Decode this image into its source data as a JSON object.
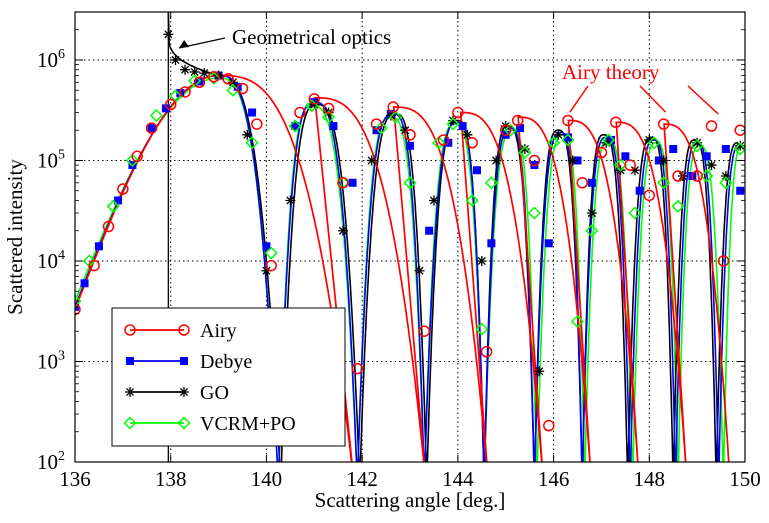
{
  "chart_data": {
    "type": "line",
    "xlabel": "Scattering angle [deg.]",
    "ylabel": "Scattered intensity",
    "xlim": [
      136,
      150
    ],
    "ylim": [
      100,
      3000000
    ],
    "y_scale": "log",
    "grid": true,
    "legend_position": "bottom-left",
    "x_ticks": [
      "136",
      "138",
      "140",
      "142",
      "144",
      "146",
      "148",
      "150"
    ],
    "y_ticks": [
      {
        "value": 100,
        "base": "10",
        "exp": "2"
      },
      {
        "value": 1000,
        "base": "10",
        "exp": "3"
      },
      {
        "value": 10000,
        "base": "10",
        "exp": "4"
      },
      {
        "value": 100000,
        "base": "10",
        "exp": "5"
      },
      {
        "value": 1000000,
        "base": "10",
        "exp": "6"
      }
    ],
    "annotations": [
      {
        "text": "Geometrical optics",
        "color": "#000000",
        "target_x": 138.05,
        "target_y": 1200000
      },
      {
        "text": "Airy theory",
        "color": "#ff0000",
        "targets": [
          [
            146.3,
            230000
          ],
          [
            148.3,
            230000
          ],
          [
            149.4,
            220000
          ]
        ]
      }
    ],
    "series": [
      {
        "name": "Airy",
        "color": "#ff0000",
        "marker": "circle",
        "curve": {
          "peaks_x": [
            139.0,
            141.0,
            142.65,
            144.05,
            145.25,
            146.3,
            147.3,
            148.3,
            149.3
          ],
          "peaks_y": [
            700000,
            420000,
            340000,
            300000,
            270000,
            250000,
            240000,
            230000,
            225000
          ],
          "minima_x": [
            141.85,
            143.35,
            144.65,
            145.8,
            146.8,
            147.8,
            148.8,
            149.7
          ]
        },
        "markers": [
          [
            136.0,
            3300
          ],
          [
            136.4,
            9000
          ],
          [
            136.7,
            22000
          ],
          [
            137.0,
            52000
          ],
          [
            137.3,
            110000
          ],
          [
            137.6,
            210000
          ],
          [
            138.0,
            360000
          ],
          [
            138.3,
            480000
          ],
          [
            138.6,
            600000
          ],
          [
            138.9,
            680000
          ],
          [
            139.2,
            650000
          ],
          [
            139.5,
            520000
          ],
          [
            139.8,
            230000
          ],
          [
            140.1,
            9000
          ],
          [
            140.7,
            300000
          ],
          [
            141.0,
            410000
          ],
          [
            141.3,
            330000
          ],
          [
            141.6,
            60000
          ],
          [
            141.9,
            850
          ],
          [
            142.3,
            230000
          ],
          [
            142.65,
            340000
          ],
          [
            143.0,
            180000
          ],
          [
            143.3,
            2000
          ],
          [
            143.7,
            160000
          ],
          [
            144.0,
            300000
          ],
          [
            144.3,
            150000
          ],
          [
            144.6,
            1250
          ],
          [
            145.0,
            200000
          ],
          [
            145.25,
            250000
          ],
          [
            145.6,
            100000
          ],
          [
            145.9,
            230
          ],
          [
            146.3,
            250000
          ],
          [
            146.6,
            60000
          ],
          [
            147.0,
            120000
          ],
          [
            147.3,
            240000
          ],
          [
            147.6,
            90000
          ],
          [
            148.0,
            45000
          ],
          [
            148.3,
            230000
          ],
          [
            148.6,
            70000
          ],
          [
            149.0,
            70000
          ],
          [
            149.3,
            220000
          ],
          [
            149.55,
            10000
          ],
          [
            149.9,
            200000
          ]
        ]
      },
      {
        "name": "Debye",
        "color": "#0000ff",
        "marker": "square",
        "markers": [
          [
            136.0,
            3500
          ],
          [
            136.2,
            6000
          ],
          [
            136.5,
            14000
          ],
          [
            136.9,
            40000
          ],
          [
            137.2,
            90000
          ],
          [
            137.6,
            210000
          ],
          [
            137.9,
            330000
          ],
          [
            138.2,
            470000
          ],
          [
            138.6,
            610000
          ],
          [
            139.0,
            700000
          ],
          [
            139.4,
            540000
          ],
          [
            139.7,
            300000
          ],
          [
            140.0,
            14000
          ],
          [
            140.6,
            220000
          ],
          [
            141.0,
            380000
          ],
          [
            141.4,
            220000
          ],
          [
            141.8,
            60000
          ],
          [
            142.3,
            200000
          ],
          [
            142.6,
            290000
          ],
          [
            143.0,
            140000
          ],
          [
            143.4,
            20000
          ],
          [
            143.8,
            150000
          ],
          [
            144.1,
            220000
          ],
          [
            144.4,
            80000
          ],
          [
            144.7,
            15000
          ],
          [
            145.0,
            180000
          ],
          [
            145.3,
            210000
          ],
          [
            145.6,
            90000
          ],
          [
            145.9,
            15000
          ],
          [
            146.3,
            170000
          ],
          [
            146.5,
            100000
          ],
          [
            146.8,
            60000
          ],
          [
            147.2,
            160000
          ],
          [
            147.5,
            110000
          ],
          [
            147.8,
            50000
          ],
          [
            148.2,
            100000
          ],
          [
            148.5,
            130000
          ],
          [
            148.9,
            70000
          ],
          [
            149.2,
            110000
          ],
          [
            149.6,
            130000
          ],
          [
            149.9,
            50000
          ]
        ]
      },
      {
        "name": "GO",
        "color": "#000000",
        "marker": "star",
        "curve": {
          "caustic_x": 137.95,
          "peaks_x": [
            139.0,
            141.05,
            142.7,
            144.0,
            145.05,
            146.1,
            147.05,
            148.05,
            148.95,
            149.85
          ],
          "peaks_y": [
            700000,
            360000,
            290000,
            250000,
            220000,
            200000,
            180000,
            170000,
            160000,
            150000
          ],
          "minima_x": [
            140.3,
            141.95,
            143.35,
            144.55,
            145.6,
            146.6,
            147.55,
            148.5,
            149.4
          ]
        },
        "markers": [
          [
            137.95,
            1800000
          ],
          [
            138.1,
            1000000
          ],
          [
            138.3,
            800000
          ],
          [
            138.5,
            760000
          ],
          [
            138.7,
            740000
          ],
          [
            139.0,
            700000
          ],
          [
            139.3,
            600000
          ],
          [
            139.6,
            180000
          ],
          [
            140.0,
            8000
          ],
          [
            140.5,
            40000
          ],
          [
            141.0,
            360000
          ],
          [
            141.3,
            300000
          ],
          [
            141.6,
            20000
          ],
          [
            142.2,
            100000
          ],
          [
            142.6,
            280000
          ],
          [
            142.9,
            200000
          ],
          [
            143.2,
            8000
          ],
          [
            143.5,
            40000
          ],
          [
            143.9,
            250000
          ],
          [
            144.2,
            180000
          ],
          [
            144.5,
            10000
          ],
          [
            144.8,
            100000
          ],
          [
            145.0,
            220000
          ],
          [
            145.4,
            130000
          ],
          [
            145.7,
            800
          ],
          [
            146.1,
            180000
          ],
          [
            146.4,
            100000
          ],
          [
            146.8,
            30000
          ],
          [
            147.1,
            150000
          ],
          [
            147.4,
            80000
          ],
          [
            147.7,
            80000
          ],
          [
            148.0,
            160000
          ],
          [
            148.3,
            100000
          ],
          [
            148.7,
            70000
          ],
          [
            149.0,
            150000
          ],
          [
            149.3,
            90000
          ],
          [
            149.6,
            70000
          ],
          [
            149.9,
            140000
          ]
        ]
      },
      {
        "name": "VCRM+PO",
        "color": "#00ff00",
        "marker": "diamond",
        "curve": {
          "peaks_x": [
            139.0,
            140.95,
            142.6,
            143.95,
            145.15,
            146.2,
            147.15,
            148.15,
            149.05,
            149.95
          ],
          "peaks_y": [
            660000,
            350000,
            270000,
            230000,
            200000,
            180000,
            160000,
            150000,
            140000,
            140000
          ],
          "minima_x": [
            140.25,
            141.9,
            143.3,
            144.55,
            145.65,
            146.65,
            147.65,
            148.6,
            149.55
          ]
        },
        "markers": [
          [
            136.0,
            4000
          ],
          [
            136.3,
            10000
          ],
          [
            136.8,
            35000
          ],
          [
            137.2,
            100000
          ],
          [
            137.7,
            280000
          ],
          [
            138.1,
            440000
          ],
          [
            138.5,
            620000
          ],
          [
            138.9,
            660000
          ],
          [
            139.3,
            500000
          ],
          [
            139.7,
            150000
          ],
          [
            140.1,
            12000
          ],
          [
            140.6,
            220000
          ],
          [
            140.95,
            350000
          ],
          [
            141.3,
            270000
          ],
          [
            141.6,
            60000
          ],
          [
            142.4,
            210000
          ],
          [
            142.7,
            270000
          ],
          [
            143.0,
            60000
          ],
          [
            143.6,
            150000
          ],
          [
            143.9,
            230000
          ],
          [
            144.3,
            40000
          ],
          [
            144.5,
            2100
          ],
          [
            144.7,
            60000
          ],
          [
            145.1,
            200000
          ],
          [
            145.4,
            120000
          ],
          [
            145.6,
            30000
          ],
          [
            146.0,
            150000
          ],
          [
            146.3,
            160000
          ],
          [
            146.5,
            2500
          ],
          [
            146.8,
            20000
          ],
          [
            147.15,
            160000
          ],
          [
            147.4,
            90000
          ],
          [
            147.7,
            30000
          ],
          [
            148.1,
            150000
          ],
          [
            148.3,
            60000
          ],
          [
            148.6,
            35000
          ],
          [
            149.0,
            140000
          ],
          [
            149.2,
            70000
          ],
          [
            149.6,
            60000
          ],
          [
            149.9,
            130000
          ]
        ]
      }
    ]
  }
}
